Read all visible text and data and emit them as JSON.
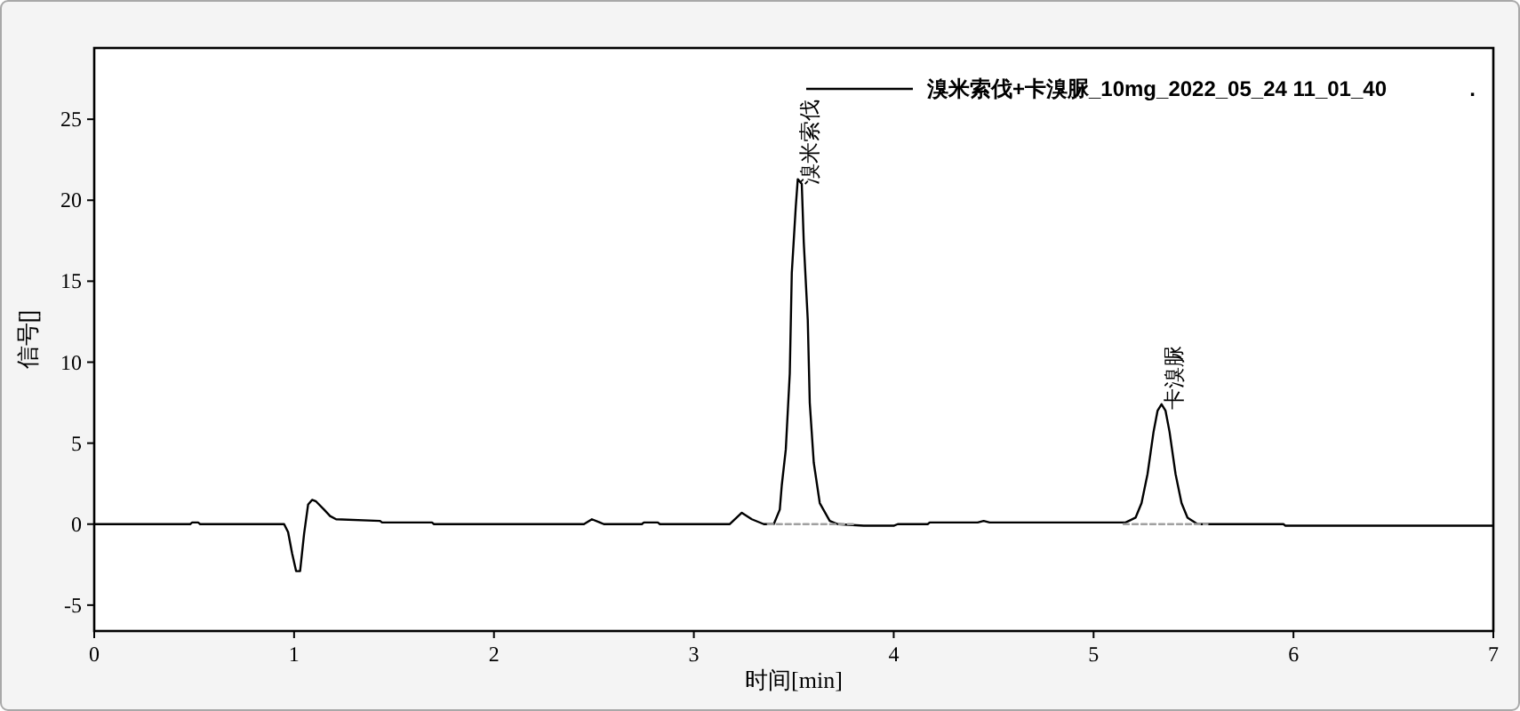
{
  "chart_data": {
    "type": "line",
    "xlabel": "时间[min]",
    "ylabel": "信号[]",
    "xlim": [
      0,
      7
    ],
    "ylim": [
      -6.6,
      29.4
    ],
    "xticks": [
      0,
      1,
      2,
      3,
      4,
      5,
      6,
      7
    ],
    "yticks": [
      -5,
      0,
      5,
      10,
      15,
      20,
      25
    ],
    "legend": "top right",
    "series": [
      {
        "name": "溴米索伐+卡溴脲_10mg_2022_05_24 11_01_40",
        "color": "#000000",
        "x": [
          0,
          0.48,
          0.49,
          0.52,
          0.53,
          0.95,
          0.97,
          0.99,
          1.01,
          1.03,
          1.05,
          1.07,
          1.09,
          1.11,
          1.15,
          1.18,
          1.21,
          1.43,
          1.44,
          1.69,
          1.7,
          2.45,
          2.49,
          2.53,
          2.55,
          2.74,
          2.75,
          2.82,
          2.83,
          3.18,
          3.24,
          3.29,
          3.35,
          3.4,
          3.43,
          3.44,
          3.46,
          3.48,
          3.49,
          3.51,
          3.52,
          3.54,
          3.55,
          3.57,
          3.58,
          3.6,
          3.63,
          3.68,
          3.72,
          3.85,
          4.0,
          4.02,
          4.17,
          4.18,
          4.42,
          4.45,
          4.48,
          5.16,
          5.21,
          5.24,
          5.27,
          5.3,
          5.32,
          5.34,
          5.36,
          5.38,
          5.41,
          5.44,
          5.47,
          5.52,
          5.95,
          5.96,
          7.0
        ],
        "values": [
          0,
          0,
          0.1,
          0.1,
          0,
          0,
          -0.5,
          -1.8,
          -2.9,
          -2.9,
          -0.6,
          1.2,
          1.5,
          1.4,
          0.9,
          0.5,
          0.3,
          0.2,
          0.1,
          0.1,
          0,
          0,
          0.3,
          0.1,
          0,
          0,
          0.1,
          0.1,
          0,
          0,
          0.7,
          0.3,
          0,
          0,
          0.9,
          2.4,
          4.6,
          9.3,
          15.5,
          19.6,
          21.3,
          21.0,
          17.4,
          12.6,
          7.5,
          3.8,
          1.3,
          0.2,
          0,
          -0.1,
          -0.1,
          0,
          0,
          0.1,
          0.1,
          0.2,
          0.1,
          0.1,
          0.4,
          1.3,
          3.1,
          5.7,
          7.0,
          7.4,
          7.0,
          5.7,
          3.1,
          1.3,
          0.4,
          0,
          0,
          -0.1,
          -0.1
        ]
      },
      {
        "color": "#a0a0a0",
        "line_style": "dashed",
        "x": [
          3.37,
          3.8
        ],
        "values": [
          0,
          0
        ]
      },
      {
        "color": "#a0a0a0",
        "line_style": "dashed",
        "x": [
          5.15,
          5.57
        ],
        "values": [
          0,
          0
        ]
      }
    ],
    "annotations": [
      {
        "text": "溴米索伐",
        "x": 3.52,
        "y": 21.3
      },
      {
        "text": "卡溴脲",
        "x": 5.34,
        "y": 7.4
      },
      "."
    ]
  }
}
